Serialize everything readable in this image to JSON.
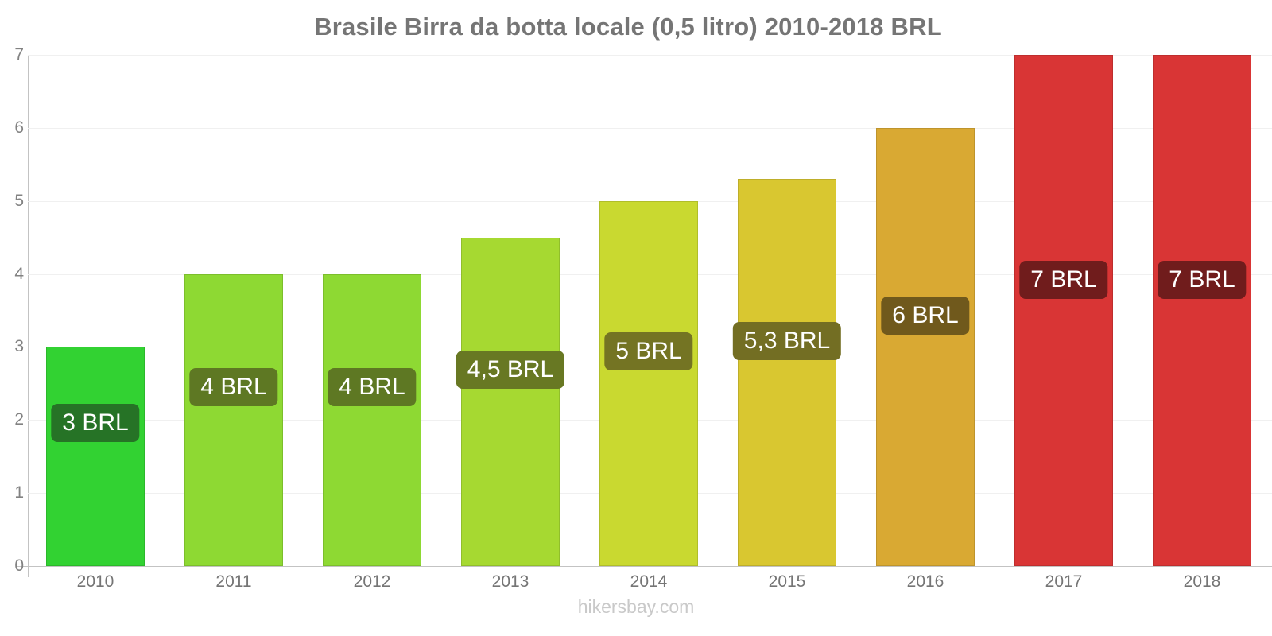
{
  "chart_data": {
    "type": "bar",
    "title": "Brasile Birra da botta locale (0,5 litro) 2010-2018 BRL",
    "source": "hikersbay.com",
    "currency": "BRL",
    "categories": [
      "2010",
      "2011",
      "2012",
      "2013",
      "2014",
      "2015",
      "2016",
      "2017",
      "2018"
    ],
    "values": [
      3,
      4,
      4,
      4.5,
      5,
      5.3,
      6,
      7,
      7
    ],
    "value_labels": [
      "3 BRL",
      "4 BRL",
      "4 BRL",
      "4,5 BRL",
      "5 BRL",
      "5,3 BRL",
      "6 BRL",
      "7 BRL",
      "7 BRL"
    ],
    "bar_colors": [
      "#32d232",
      "#8ed933",
      "#8ed933",
      "#a6d931",
      "#c9d930",
      "#d9c730",
      "#d9a933",
      "#d93535",
      "#d93535"
    ],
    "label_bg_colors": [
      "#267326",
      "#5e7823",
      "#5e7823",
      "#687823",
      "#747423",
      "#736e23",
      "#70591c",
      "#701c1c",
      "#701c1c"
    ],
    "ylim": [
      0,
      7
    ],
    "yticks": [
      0,
      1,
      2,
      3,
      4,
      5,
      6,
      7
    ],
    "grid": true,
    "legend": "none",
    "axis_color": "#c3c3c3",
    "grid_color": "#f0f0f0",
    "text_color": "#757575",
    "label_text_color": "#ffffff"
  }
}
